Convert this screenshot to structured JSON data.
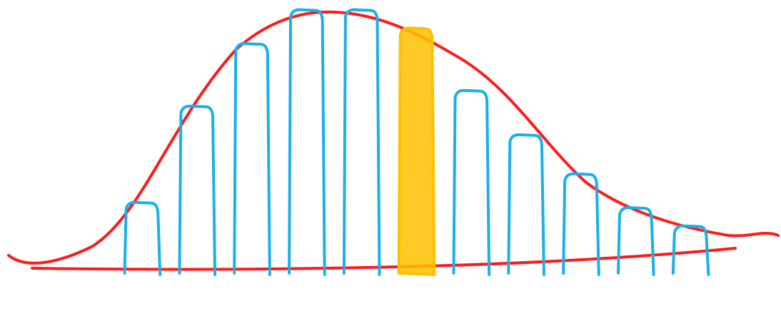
{
  "chart_data": {
    "type": "bar",
    "categories": [
      null,
      null,
      null,
      null,
      null,
      null,
      null,
      null,
      null,
      null,
      null
    ],
    "values": [
      25,
      62,
      86,
      99,
      99,
      92,
      68,
      51,
      36,
      23,
      16
    ],
    "colors": [
      "#1ab0e8",
      "#1ab0e8",
      "#1ab0e8",
      "#1ab0e8",
      "#1ab0e8",
      "#ffc000",
      "#1ab0e8",
      "#1ab0e8",
      "#1ab0e8",
      "#1ab0e8",
      "#1ab0e8"
    ],
    "ylim": [
      0,
      100
    ]
  }
}
